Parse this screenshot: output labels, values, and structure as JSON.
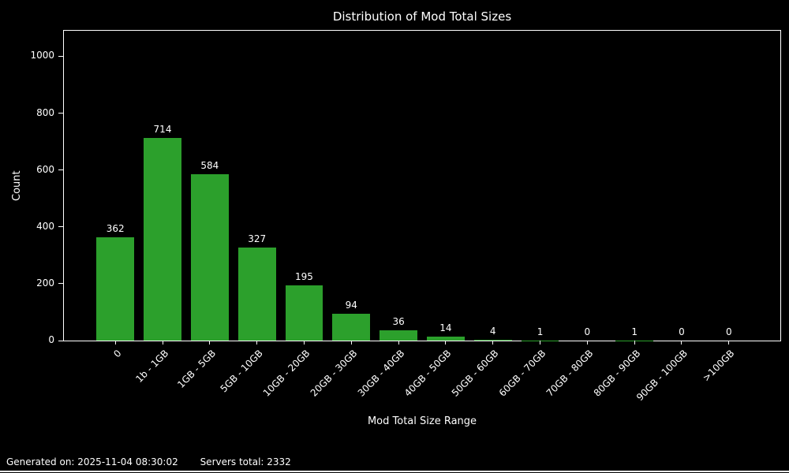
{
  "chart_data": {
    "type": "bar",
    "title": "Distribution of Mod Total Sizes",
    "xlabel": "Mod Total Size Range",
    "ylabel": "Count",
    "categories": [
      "0",
      "1b - 1GB",
      "1GB - 5GB",
      "5GB - 10GB",
      "10GB - 20GB",
      "20GB - 30GB",
      "30GB - 40GB",
      "40GB - 50GB",
      "50GB - 60GB",
      "60GB - 70GB",
      "70GB - 80GB",
      "80GB - 90GB",
      "90GB - 100GB",
      ">100GB"
    ],
    "values": [
      362,
      714,
      584,
      327,
      195,
      94,
      36,
      14,
      4,
      1,
      0,
      1,
      0,
      0
    ],
    "yticks": [
      0,
      200,
      400,
      600,
      800,
      1000
    ],
    "ylim": [
      0,
      1090
    ],
    "grid": false,
    "legend": "none",
    "bar_color": "#2ca02c",
    "background_color": "#000000",
    "text_color": "#ffffff"
  },
  "footer": {
    "generated": "Generated on: 2025-11-04 08:30:02",
    "servers_total": "Servers total: 2332"
  }
}
